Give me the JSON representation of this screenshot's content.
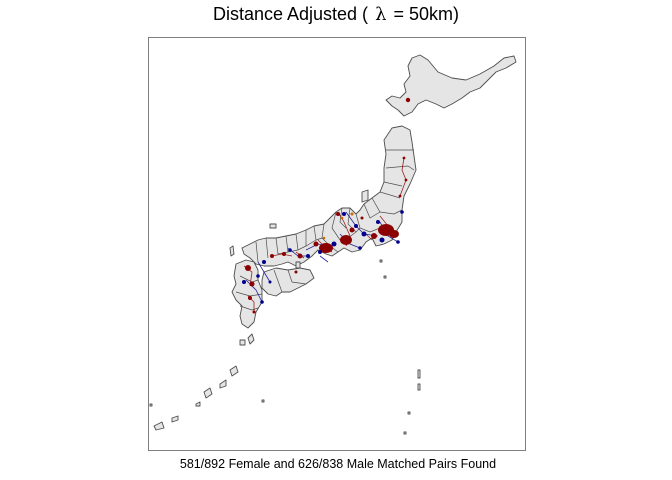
{
  "title": {
    "prefix": "Distance Adjusted (",
    "symbol": "λ",
    "suffix": "= 50km)"
  },
  "caption": "581/892 Female and 626/838 Male Matched Pairs Found",
  "map": {
    "region": "Japan",
    "land_color": "#e5e5e5",
    "border_color": "#4d4d4d",
    "female_pair_color": "#8b0000",
    "male_pair_color": "#00008b",
    "extra_point_color": "#cc6600"
  },
  "matched_pairs": {
    "female": {
      "found": 581,
      "total": 892
    },
    "male": {
      "found": 626,
      "total": 838
    }
  }
}
